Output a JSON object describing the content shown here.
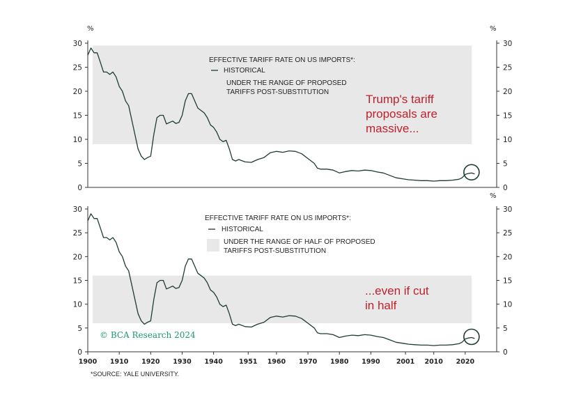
{
  "source": "*SOURCE: YALE UNIVERSITY.",
  "watermark": "© BCA Research 2024",
  "colors": {
    "line": "#1f3b34",
    "band": "#e8e8e8",
    "annotation": "#c0202c",
    "watermark": "#1a9a70"
  },
  "chart_data": [
    {
      "type": "line",
      "unit": "%",
      "legend_title": "EFFECTIVE TARIFF RATE ON US IMPORTS*:",
      "legend_items": [
        "HISTORICAL",
        "UNDER THE RANGE OF PROPOSED",
        "TARIFFS POST-SUBSTITUTION"
      ],
      "annotation_lines": [
        "Trump's tariff",
        "proposals are",
        "massive..."
      ],
      "band": [
        9,
        29.5
      ],
      "ylim": [
        0,
        30
      ],
      "yticks": [
        0,
        5,
        10,
        15,
        20,
        25,
        30
      ],
      "grid": false,
      "highlight_circle_year": 2022
    },
    {
      "type": "line",
      "unit": "%",
      "legend_title": "EFFECTIVE TARIFF RATE ON US IMPORTS*:",
      "legend_items": [
        "HISTORICAL",
        "UNDER THE RANGE OF HALF OF PROPOSED",
        "TARIFFS POST-SUBSTITUTION"
      ],
      "annotation_lines": [
        "...even if cut",
        "in half"
      ],
      "band": [
        6,
        16
      ],
      "ylim": [
        0,
        30
      ],
      "yticks": [
        0,
        5,
        10,
        15,
        20,
        25,
        30
      ],
      "grid": false,
      "highlight_circle_year": 2022
    }
  ],
  "x_axis": {
    "xlim": [
      1900,
      2030
    ],
    "ticks": [
      1900,
      1910,
      1920,
      1930,
      1940,
      1951,
      1960,
      1970,
      1980,
      1990,
      2001,
      2010,
      2020
    ]
  },
  "series": {
    "name": "HISTORICAL",
    "x": [
      1900,
      1901,
      1902,
      1903,
      1904,
      1905,
      1906,
      1907,
      1908,
      1909,
      1910,
      1911,
      1912,
      1913,
      1914,
      1915,
      1916,
      1917,
      1918,
      1919,
      1920,
      1921,
      1922,
      1923,
      1924,
      1925,
      1926,
      1927,
      1928,
      1929,
      1930,
      1931,
      1932,
      1933,
      1934,
      1935,
      1936,
      1937,
      1938,
      1939,
      1940,
      1941,
      1942,
      1943,
      1944,
      1945,
      1946,
      1947,
      1948,
      1950,
      1952,
      1954,
      1956,
      1958,
      1960,
      1962,
      1964,
      1966,
      1968,
      1970,
      1972,
      1973,
      1974,
      1976,
      1978,
      1980,
      1982,
      1984,
      1986,
      1988,
      1990,
      1992,
      1994,
      1996,
      1998,
      2000,
      2002,
      2004,
      2006,
      2008,
      2010,
      2012,
      2014,
      2016,
      2018,
      2019,
      2020,
      2021,
      2022,
      2023
    ],
    "y": [
      27.5,
      29,
      28,
      28,
      26,
      24,
      24,
      23.5,
      24,
      23,
      21,
      20,
      18,
      17,
      14,
      11,
      8,
      6.5,
      5.8,
      6.2,
      6.5,
      11,
      14.5,
      15,
      15,
      13.2,
      13.5,
      13.8,
      13.3,
      13.5,
      15,
      18,
      19.5,
      19.5,
      18,
      16.5,
      16,
      15.5,
      14.5,
      13,
      12.5,
      11.5,
      10,
      9.5,
      9.8,
      8,
      5.8,
      5.5,
      5.8,
      5.3,
      5.2,
      5.8,
      6.2,
      7.2,
      7.5,
      7.3,
      7.6,
      7.5,
      7,
      6,
      5,
      4,
      3.8,
      3.8,
      3.6,
      3,
      3.3,
      3.5,
      3.4,
      3.6,
      3.5,
      3.2,
      3,
      2.5,
      2,
      1.8,
      1.6,
      1.5,
      1.4,
      1.4,
      1.3,
      1.4,
      1.4,
      1.5,
      1.7,
      2,
      2.7,
      2.9,
      3,
      2.8
    ]
  }
}
